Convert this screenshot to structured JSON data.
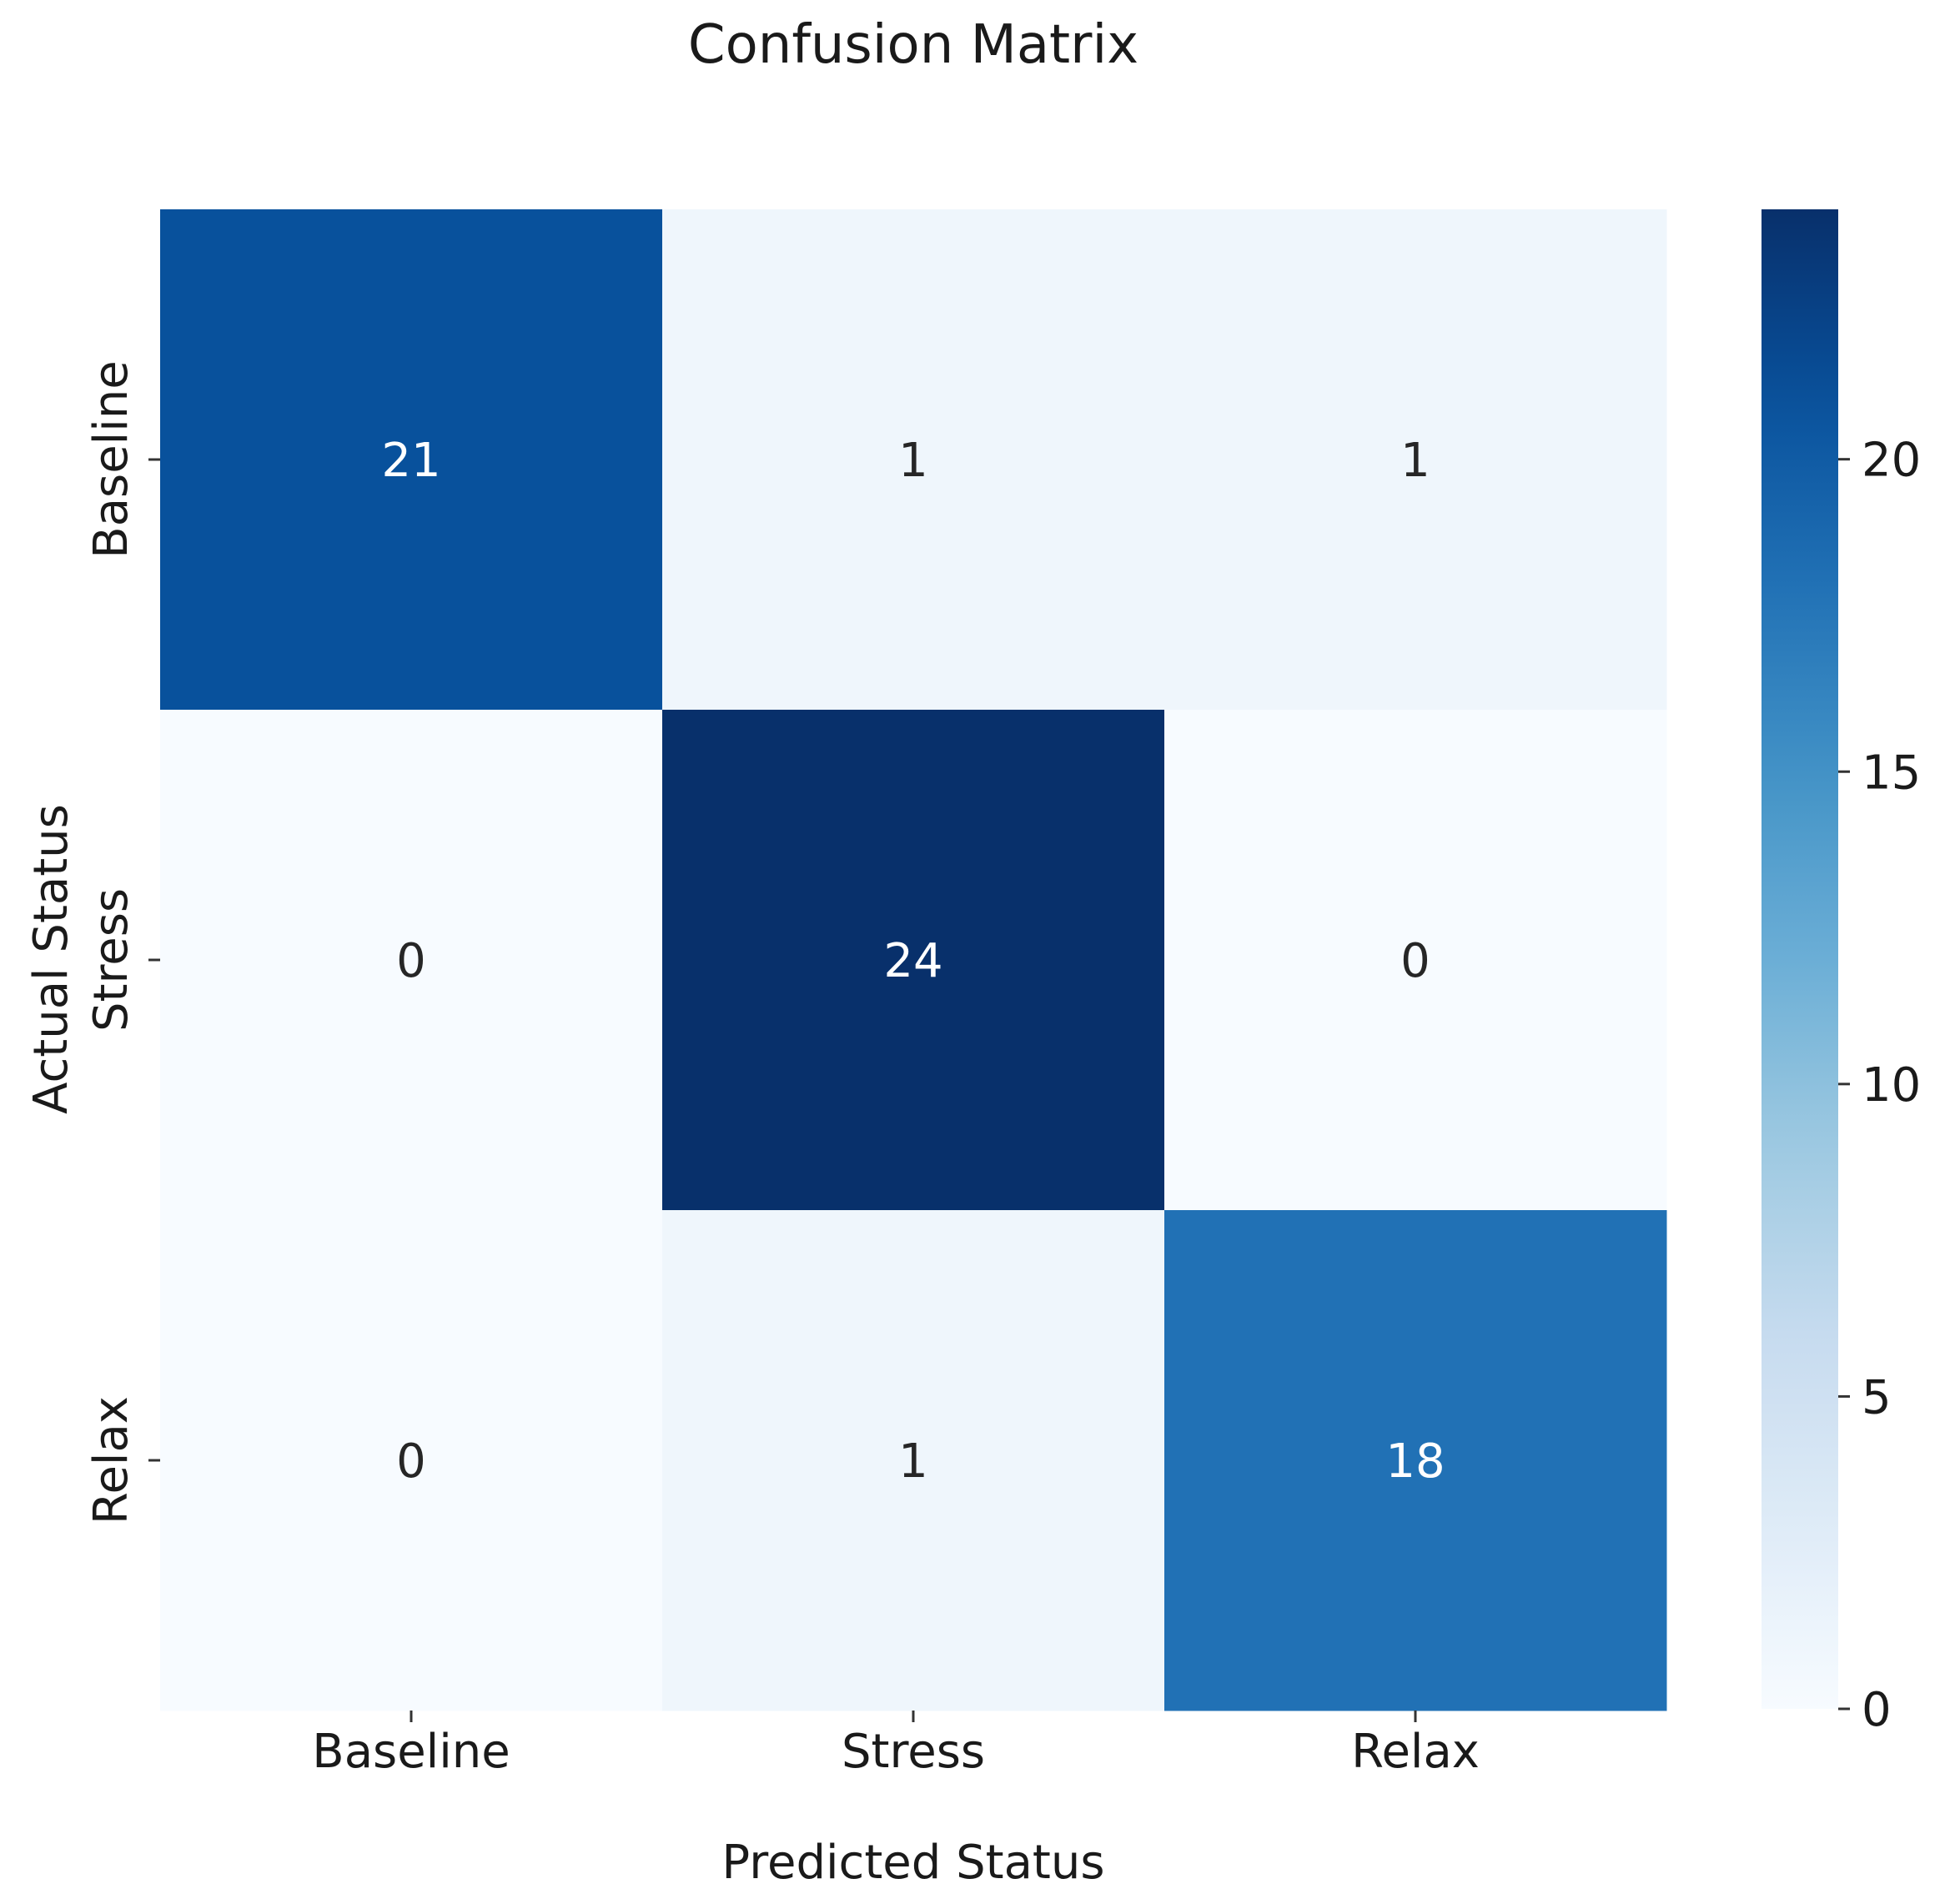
{
  "chart_data": {
    "type": "heatmap",
    "title": "Confusion Matrix",
    "xlabel": "Predicted Status",
    "ylabel": "Actual Status",
    "x_categories": [
      "Baseline",
      "Stress",
      "Relax"
    ],
    "y_categories": [
      "Baseline",
      "Stress",
      "Relax"
    ],
    "values": [
      [
        21,
        1,
        1
      ],
      [
        0,
        24,
        0
      ],
      [
        0,
        1,
        18
      ]
    ],
    "colorbar": {
      "min": 0,
      "max": 24,
      "ticks": [
        0,
        5,
        10,
        15,
        20
      ],
      "colormap": "Blues"
    },
    "annotations": true,
    "grid": false
  }
}
